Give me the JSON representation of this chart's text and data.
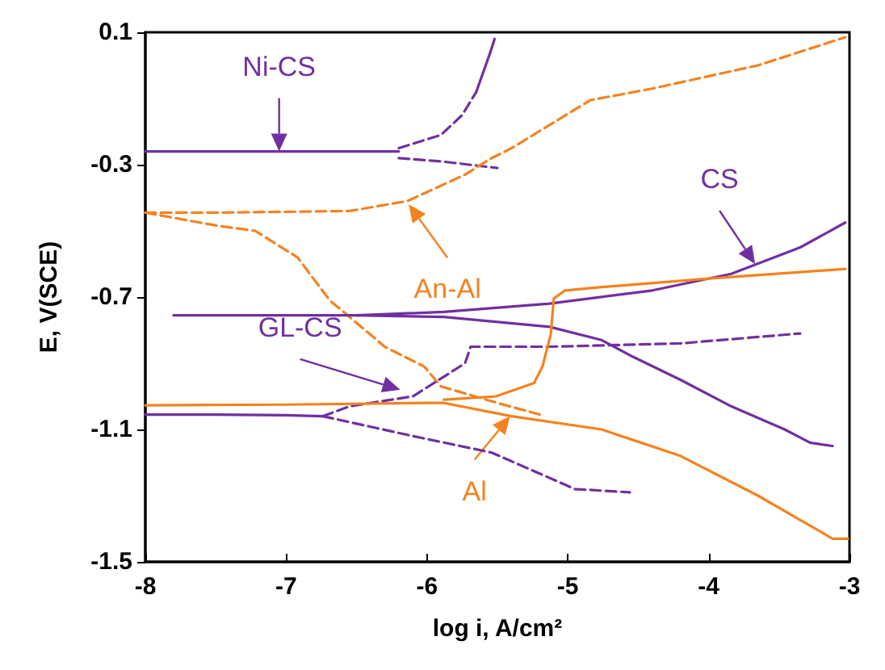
{
  "chart_data": {
    "type": "line",
    "xlabel": "log i, A/cm²",
    "ylabel": "E, V(SCE)",
    "xlim": [
      -8,
      -3
    ],
    "xticks": [
      -8,
      -7,
      -6,
      -5,
      -4,
      -3
    ],
    "ylim": [
      -1.5,
      0.1
    ],
    "yticks": [
      0.1,
      -0.3,
      -0.7,
      -1.1,
      -1.5
    ],
    "grid": false,
    "marker": "none",
    "series": [
      {
        "color": "#7030a0",
        "line_style": "solid",
        "x": [
          -8,
          -7,
          -6.5,
          -6.2
        ],
        "values": [
          -0.26,
          -0.26,
          -0.26,
          -0.26
        ]
      },
      {
        "color": "#7030a0",
        "line_style": "dashed",
        "x": [
          -6.2,
          -5.9,
          -5.75,
          -5.65
        ],
        "values": [
          -0.25,
          -0.21,
          -0.15,
          -0.08
        ]
      },
      {
        "color": "#7030a0",
        "line_style": "solid",
        "x": [
          -5.65,
          -5.6,
          -5.55,
          -5.52
        ],
        "values": [
          -0.08,
          -0.02,
          0.04,
          0.08
        ]
      },
      {
        "color": "#7030a0",
        "line_style": "dashed",
        "x": [
          -6.2,
          -5.9,
          -5.5
        ],
        "values": [
          -0.28,
          -0.29,
          -0.31
        ]
      },
      {
        "color": "#f5821f",
        "line_style": "dashed",
        "x": [
          -8,
          -7.5,
          -6.55,
          -6.14,
          -5.73,
          -5.54,
          -5.4,
          -5.13,
          -4.84,
          -4.4,
          -3.65,
          -3.03
        ],
        "values": [
          -0.445,
          -0.445,
          -0.44,
          -0.41,
          -0.33,
          -0.28,
          -0.25,
          -0.18,
          -0.105,
          -0.07,
          0.0,
          0.085
        ]
      },
      {
        "color": "#f5821f",
        "line_style": "dashed",
        "x": [
          -8,
          -7.48,
          -7.22,
          -6.92,
          -6.69,
          -6.3,
          -6.02,
          -5.9,
          -5.5,
          -5.2
        ],
        "values": [
          -0.445,
          -0.485,
          -0.5,
          -0.58,
          -0.71,
          -0.85,
          -0.91,
          -0.97,
          -1.02,
          -1.055
        ]
      },
      {
        "color": "#7030a0",
        "line_style": "solid",
        "x": [
          -7.8,
          -7,
          -6.5,
          -5.88,
          -5.13,
          -4.4,
          -3.84,
          -3.35,
          -3.03
        ],
        "values": [
          -0.755,
          -0.755,
          -0.755,
          -0.745,
          -0.72,
          -0.68,
          -0.63,
          -0.55,
          -0.475
        ]
      },
      {
        "color": "#7030a0",
        "line_style": "solid",
        "x": [
          -6.5,
          -5.88,
          -5.13,
          -4.76,
          -4.54,
          -4.2,
          -3.84,
          -3.46,
          -3.28,
          -3.12
        ],
        "values": [
          -0.755,
          -0.76,
          -0.79,
          -0.83,
          -0.88,
          -0.95,
          -1.03,
          -1.1,
          -1.14,
          -1.15
        ]
      },
      {
        "color": "#7030a0",
        "line_style": "solid",
        "x": [
          -8,
          -7.5,
          -7,
          -6.74
        ],
        "values": [
          -1.055,
          -1.055,
          -1.057,
          -1.06
        ]
      },
      {
        "color": "#7030a0",
        "line_style": "dashed",
        "x": [
          -6.74,
          -6.55,
          -6.1,
          -5.73,
          -5.69,
          -5.13,
          -4.2,
          -3.35
        ],
        "values": [
          -1.06,
          -1.03,
          -1.0,
          -0.9,
          -0.85,
          -0.85,
          -0.84,
          -0.81
        ]
      },
      {
        "color": "#7030a0",
        "line_style": "dashed",
        "x": [
          -6.74,
          -6.1,
          -5.54,
          -4.95,
          -4.56
        ],
        "values": [
          -1.06,
          -1.12,
          -1.17,
          -1.28,
          -1.29
        ]
      },
      {
        "color": "#f5821f",
        "line_style": "solid",
        "x": [
          -8,
          -7,
          -6,
          -5.88,
          -5.4,
          -4.76,
          -4.2,
          -3.65,
          -3.12,
          -3.01
        ],
        "values": [
          -1.027,
          -1.025,
          -1.02,
          -1.02,
          -1.06,
          -1.1,
          -1.18,
          -1.3,
          -1.43,
          -1.43
        ]
      },
      {
        "color": "#f5821f",
        "line_style": "solid",
        "x": [
          -5.88,
          -5.51,
          -5.24,
          -5.18,
          -5.12,
          -5.1,
          -5.02,
          -4.76,
          -4.02,
          -3.03
        ],
        "values": [
          -1.01,
          -1.0,
          -0.96,
          -0.91,
          -0.81,
          -0.705,
          -0.68,
          -0.67,
          -0.645,
          -0.615
        ]
      }
    ],
    "annotations": [
      {
        "text": "Ni-CS",
        "x": -7.05,
        "y": -0.26
      },
      {
        "text": "An-Al",
        "x": -6.13,
        "y": -0.42
      },
      {
        "text": "CS",
        "x": -3.67,
        "y": -0.6
      },
      {
        "text": "GL-CS",
        "x": -6.19,
        "y": -0.98
      },
      {
        "text": "Al",
        "x": -5.41,
        "y": -1.06
      }
    ]
  }
}
